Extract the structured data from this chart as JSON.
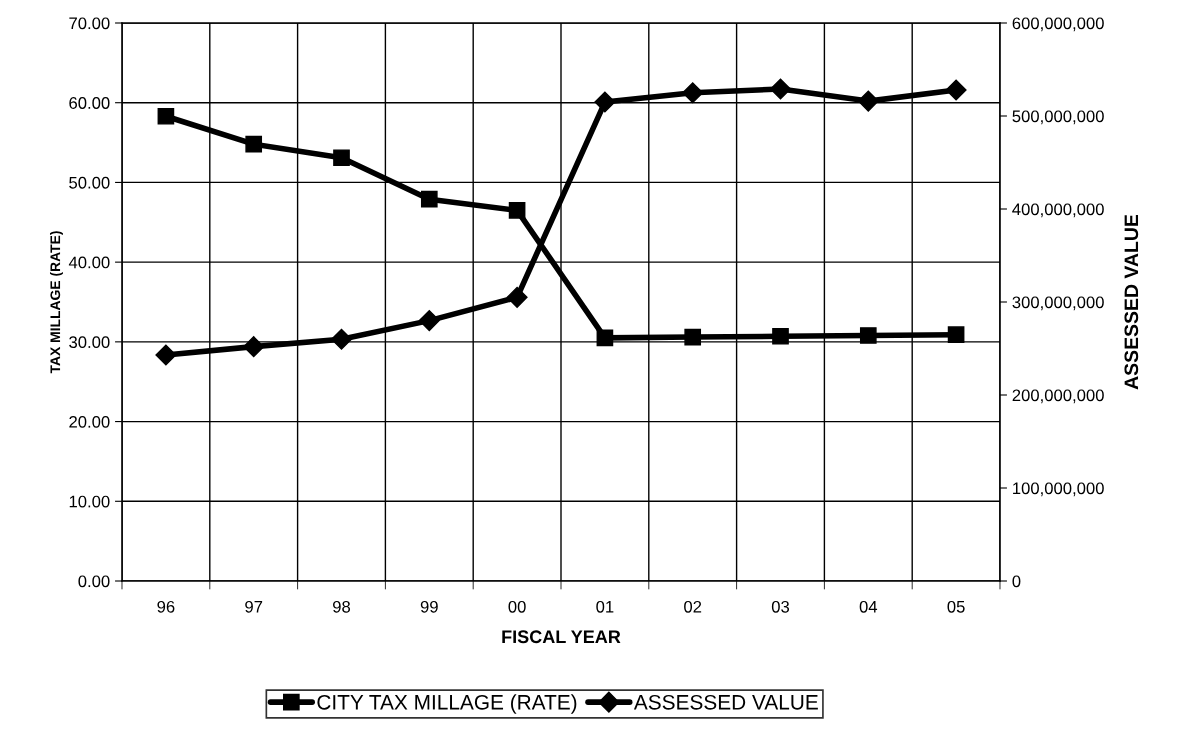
{
  "chart_data": {
    "type": "line",
    "xlabel": "FISCAL YEAR",
    "ylabel": "TAX MILLAGE (RATE)",
    "y2label": "ASSESSED VALUE",
    "categories": [
      "96",
      "97",
      "98",
      "99",
      "00",
      "01",
      "02",
      "03",
      "04",
      "05"
    ],
    "series": [
      {
        "name": "CITY TAX MILLAGE (RATE)",
        "color": "#000000",
        "marker": "square",
        "values": [
          58.3,
          54.8,
          53.1,
          47.9,
          46.5,
          30.5,
          30.6,
          30.7,
          30.8,
          30.9
        ]
      },
      {
        "name": "ASSESSED VALUE",
        "color": "#000000",
        "marker": "diamond",
        "axis": "y2",
        "values": [
          243000000,
          252000000,
          260000000,
          280000000,
          305000000,
          515000000,
          525000000,
          529000000,
          516000000,
          528000000
        ]
      }
    ],
    "ylim": [
      0,
      70
    ],
    "yticks": [
      {
        "value": 0,
        "label": "0.00"
      },
      {
        "value": 10,
        "label": "10.00"
      },
      {
        "value": 20,
        "label": "20.00"
      },
      {
        "value": 30,
        "label": "30.00"
      },
      {
        "value": 40,
        "label": "40.00"
      },
      {
        "value": 50,
        "label": "50.00"
      },
      {
        "value": 60,
        "label": "60.00"
      },
      {
        "value": 70,
        "label": "70.00"
      }
    ],
    "y2lim": [
      0,
      600000000
    ],
    "y2ticks": [
      0,
      {
        "value": 100000000,
        "label": "100,000,000"
      },
      {
        "value": 200000000,
        "label": "200,000,000"
      },
      {
        "value": 300000000,
        "label": "300,000,000"
      },
      {
        "value": 400000000,
        "label": "400,000,000"
      },
      {
        "value": 500000000,
        "label": "500,000,000"
      },
      {
        "value": 600000000,
        "label": "600,000,000"
      }
    ],
    "grid": true,
    "legend": "bottom",
    "line_style": "solid"
  }
}
